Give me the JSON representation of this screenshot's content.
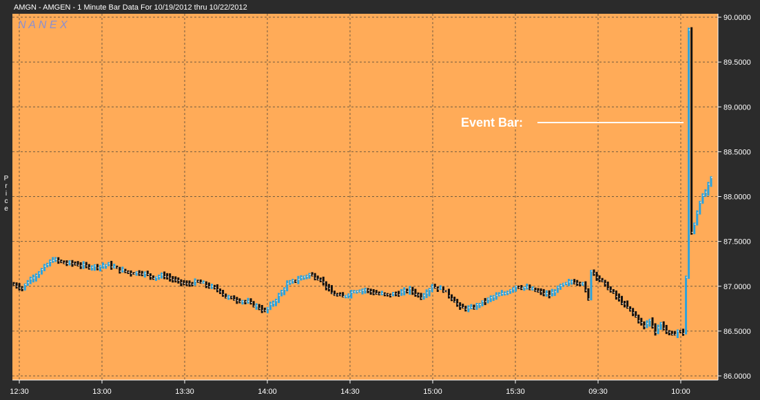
{
  "chart_data": {
    "type": "ohlc",
    "title": "AMGN - AMGEN - 1 Minute Bar Data For 10/19/2012  thru  10/22/2012",
    "watermark": "N A N E X",
    "ylabel": "Price",
    "ylim": [
      86.0,
      90.0
    ],
    "y_ticks": [
      "90.0000",
      "89.5000",
      "89.0000",
      "88.5000",
      "88.0000",
      "87.5000",
      "87.0000",
      "86.5000",
      "86.0000"
    ],
    "x_ticks": [
      "12:30",
      "13:00",
      "13:30",
      "14:00",
      "14:30",
      "15:00",
      "15:30",
      "09:30",
      "10:00"
    ],
    "annotation": "Event Bar:",
    "grid": true,
    "colors": {
      "background": "#2b2b2b",
      "plot_bg": "#ffab58",
      "grid": "#6f5a3f",
      "bar_up": "#29a3df",
      "bar_down": "#111111",
      "tick_mark": "#ffffff",
      "text": "#ffffff",
      "watermark": "#8a8fd0"
    },
    "price_path": [
      {
        "t": 0,
        "p": 87.02
      },
      {
        "t": 3,
        "p": 86.98
      },
      {
        "t": 6,
        "p": 87.08
      },
      {
        "t": 10,
        "p": 87.18
      },
      {
        "t": 14,
        "p": 87.3
      },
      {
        "t": 18,
        "p": 87.26
      },
      {
        "t": 22,
        "p": 87.25
      },
      {
        "t": 26,
        "p": 87.22
      },
      {
        "t": 30,
        "p": 87.22
      },
      {
        "t": 34,
        "p": 87.24
      },
      {
        "t": 38,
        "p": 87.18
      },
      {
        "t": 42,
        "p": 87.15
      },
      {
        "t": 46,
        "p": 87.15
      },
      {
        "t": 50,
        "p": 87.1
      },
      {
        "t": 54,
        "p": 87.12
      },
      {
        "t": 58,
        "p": 87.06
      },
      {
        "t": 62,
        "p": 87.02
      },
      {
        "t": 66,
        "p": 87.05
      },
      {
        "t": 70,
        "p": 87.0
      },
      {
        "t": 74,
        "p": 86.95
      },
      {
        "t": 76,
        "p": 86.88
      },
      {
        "t": 80,
        "p": 86.85
      },
      {
        "t": 84,
        "p": 86.82
      },
      {
        "t": 88,
        "p": 86.76
      },
      {
        "t": 90,
        "p": 86.72
      },
      {
        "t": 94,
        "p": 86.85
      },
      {
        "t": 98,
        "p": 87.02
      },
      {
        "t": 102,
        "p": 87.08
      },
      {
        "t": 106,
        "p": 87.13
      },
      {
        "t": 110,
        "p": 87.08
      },
      {
        "t": 114,
        "p": 86.92
      },
      {
        "t": 118,
        "p": 86.88
      },
      {
        "t": 122,
        "p": 86.95
      },
      {
        "t": 126,
        "p": 86.96
      },
      {
        "t": 130,
        "p": 86.92
      },
      {
        "t": 134,
        "p": 86.9
      },
      {
        "t": 138,
        "p": 86.92
      },
      {
        "t": 142,
        "p": 86.96
      },
      {
        "t": 146,
        "p": 86.88
      },
      {
        "t": 150,
        "p": 87.0
      },
      {
        "t": 154,
        "p": 86.96
      },
      {
        "t": 158,
        "p": 86.84
      },
      {
        "t": 160,
        "p": 86.76
      },
      {
        "t": 164,
        "p": 86.75
      },
      {
        "t": 168,
        "p": 86.82
      },
      {
        "t": 172,
        "p": 86.88
      },
      {
        "t": 176,
        "p": 86.92
      },
      {
        "t": 180,
        "p": 87.0
      },
      {
        "t": 184,
        "p": 86.98
      },
      {
        "t": 188,
        "p": 86.94
      },
      {
        "t": 192,
        "p": 86.9
      },
      {
        "t": 196,
        "p": 87.0
      },
      {
        "t": 200,
        "p": 87.05
      },
      {
        "t": 204,
        "p": 87.04
      },
      {
        "t": 206,
        "p": 86.85
      },
      {
        "t": 207,
        "p": 87.18
      },
      {
        "t": 210,
        "p": 87.08
      },
      {
        "t": 214,
        "p": 86.95
      },
      {
        "t": 218,
        "p": 86.82
      },
      {
        "t": 222,
        "p": 86.7
      },
      {
        "t": 226,
        "p": 86.55
      },
      {
        "t": 228,
        "p": 86.62
      },
      {
        "t": 230,
        "p": 86.5
      },
      {
        "t": 232,
        "p": 86.58
      },
      {
        "t": 234,
        "p": 86.5
      },
      {
        "t": 236,
        "p": 86.45
      },
      {
        "t": 238,
        "p": 86.5
      },
      {
        "t": 240,
        "p": 86.48
      },
      {
        "t": 241,
        "p": 87.1
      },
      {
        "t": 242,
        "p": 89.85
      },
      {
        "t": 243,
        "p": 87.6
      },
      {
        "t": 244,
        "p": 87.7
      },
      {
        "t": 246,
        "p": 87.95
      },
      {
        "t": 248,
        "p": 88.05
      },
      {
        "t": 250,
        "p": 88.2
      }
    ]
  }
}
